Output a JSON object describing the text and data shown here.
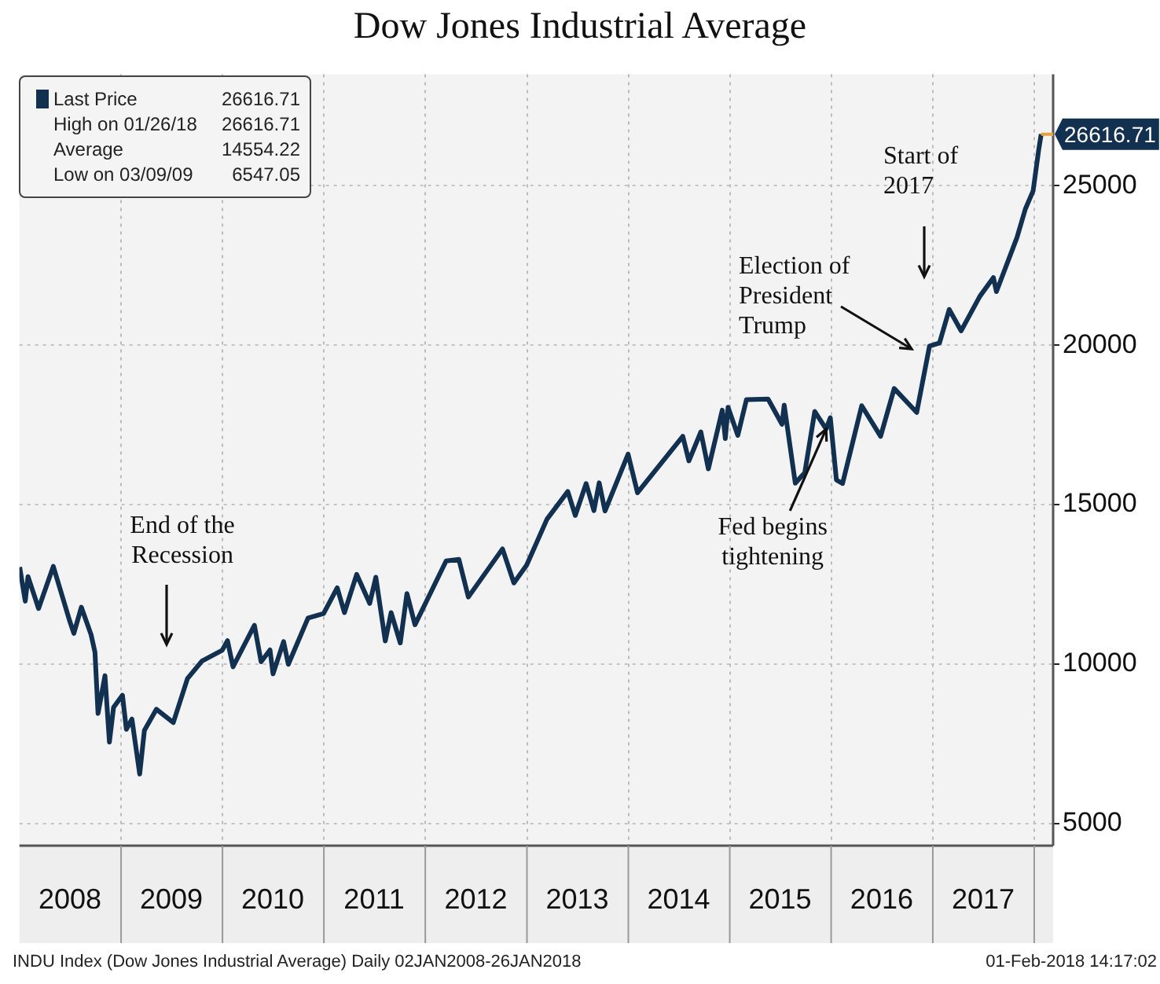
{
  "chart_data": {
    "type": "line",
    "title": "Dow Jones Industrial Average",
    "x": [
      "2008-01-02",
      "2008-01-22",
      "2008-02-01",
      "2008-03-10",
      "2008-05-02",
      "2008-06-30",
      "2008-07-15",
      "2008-08-11",
      "2008-09-15",
      "2008-09-29",
      "2008-10-10",
      "2008-11-04",
      "2008-11-20",
      "2008-12-05",
      "2009-01-06",
      "2009-01-20",
      "2009-02-09",
      "2009-03-09",
      "2009-03-26",
      "2009-05-08",
      "2009-07-08",
      "2009-08-28",
      "2009-10-19",
      "2009-12-31",
      "2010-01-19",
      "2010-02-08",
      "2010-04-26",
      "2010-05-20",
      "2010-06-21",
      "2010-07-02",
      "2010-08-09",
      "2010-08-26",
      "2010-11-05",
      "2010-12-31",
      "2011-02-18",
      "2011-03-16",
      "2011-04-29",
      "2011-06-15",
      "2011-07-07",
      "2011-08-10",
      "2011-08-31",
      "2011-10-03",
      "2011-10-27",
      "2011-11-25",
      "2012-03-16",
      "2012-05-01",
      "2012-06-04",
      "2012-10-05",
      "2012-11-15",
      "2012-12-31",
      "2013-03-14",
      "2013-05-28",
      "2013-06-24",
      "2013-08-02",
      "2013-08-30",
      "2013-09-18",
      "2013-10-09",
      "2013-12-31",
      "2014-02-03",
      "2014-07-16",
      "2014-08-07",
      "2014-09-19",
      "2014-10-16",
      "2014-12-05",
      "2014-12-16",
      "2014-12-26",
      "2015-01-30",
      "2015-03-02",
      "2015-05-19",
      "2015-07-08",
      "2015-07-16",
      "2015-08-25",
      "2015-09-28",
      "2015-11-03",
      "2015-12-14",
      "2015-12-29",
      "2016-01-20",
      "2016-02-11",
      "2016-04-20",
      "2016-06-27",
      "2016-08-15",
      "2016-11-04",
      "2016-12-20",
      "2017-01-25",
      "2017-03-01",
      "2017-04-13",
      "2017-06-19",
      "2017-08-07",
      "2017-08-18",
      "2017-10-31",
      "2017-11-30",
      "2017-12-28",
      "2018-01-17",
      "2018-01-26"
    ],
    "series": [
      {
        "name": "Last Price",
        "color": "#12304f",
        "values": [
          13040,
          11970,
          12740,
          11740,
          13060,
          11350,
          10960,
          11780,
          10920,
          10370,
          8450,
          9630,
          7550,
          8640,
          9020,
          7950,
          8270,
          6547.05,
          7920,
          8580,
          8160,
          9540,
          10090,
          10430,
          10730,
          9910,
          11210,
          10070,
          10440,
          9690,
          10700,
          9990,
          11440,
          11580,
          12390,
          11610,
          12810,
          11900,
          12720,
          10720,
          11610,
          10660,
          12210,
          11230,
          13230,
          13280,
          12100,
          13610,
          12540,
          13100,
          14540,
          15410,
          14660,
          15660,
          14810,
          15680,
          14800,
          16580,
          15370,
          17140,
          16370,
          17280,
          16120,
          17960,
          17070,
          18050,
          17170,
          18290,
          18310,
          17520,
          18120,
          15670,
          16000,
          17920,
          17370,
          17720,
          15770,
          15660,
          18100,
          17140,
          18640,
          17890,
          19970,
          20070,
          21120,
          20450,
          21530,
          22120,
          21680,
          23380,
          24270,
          24840,
          26120,
          26616.71
        ],
        "value_labels": [
          null,
          null,
          null,
          null,
          null,
          null,
          null,
          null,
          null,
          null,
          null,
          null,
          null,
          null,
          null,
          null,
          null,
          null,
          null,
          null,
          null,
          null,
          null,
          null,
          null,
          null,
          null,
          null,
          null,
          null,
          null,
          null,
          null,
          null,
          null,
          null,
          null,
          null,
          null,
          null,
          null,
          null,
          null,
          null,
          null,
          null,
          null,
          null,
          null,
          null,
          null,
          null,
          null,
          null,
          null,
          null,
          null,
          null,
          null,
          null,
          null,
          null,
          null,
          null,
          null,
          null,
          null,
          null,
          null,
          null,
          null,
          null,
          null,
          null,
          null,
          null,
          null,
          null,
          null,
          null,
          null,
          null,
          null,
          null,
          null,
          null,
          null,
          null,
          null,
          null,
          null,
          null,
          null,
          "26616.71"
        ]
      }
    ],
    "xlim": [
      "2008-01-01",
      "2018-03-10"
    ],
    "xticks": [
      {
        "value": "2008-07-01",
        "label": "2008"
      },
      {
        "value": "2009-01-01",
        "label": null
      },
      {
        "value": "2009-07-01",
        "label": "2009"
      },
      {
        "value": "2010-01-01",
        "label": null
      },
      {
        "value": "2010-07-01",
        "label": "2010"
      },
      {
        "value": "2011-01-01",
        "label": null
      },
      {
        "value": "2011-07-01",
        "label": "2011"
      },
      {
        "value": "2012-01-01",
        "label": null
      },
      {
        "value": "2012-07-01",
        "label": "2012"
      },
      {
        "value": "2013-01-01",
        "label": null
      },
      {
        "value": "2013-07-01",
        "label": "2013"
      },
      {
        "value": "2014-01-01",
        "label": null
      },
      {
        "value": "2014-07-01",
        "label": "2014"
      },
      {
        "value": "2015-01-01",
        "label": null
      },
      {
        "value": "2015-07-01",
        "label": "2015"
      },
      {
        "value": "2016-01-01",
        "label": null
      },
      {
        "value": "2016-07-01",
        "label": "2016"
      },
      {
        "value": "2017-01-01",
        "label": null
      },
      {
        "value": "2017-07-01",
        "label": "2017"
      },
      {
        "value": "2018-01-01",
        "label": null
      }
    ],
    "ylim": [
      4300,
      28500
    ],
    "yticks": [
      5000,
      10000,
      15000,
      20000,
      25000
    ],
    "grid": true,
    "legend": "top left",
    "annotations": [
      "High on 01/26/18 26616.71",
      "Average 14554.22",
      "Low on 03/09/09 6547.05",
      "INDU Index (Dow Jones Industrial Average) Daily 02JAN2008-26JAN2018",
      "01-Feb-2018 14:17:02",
      "End of the Recession",
      "Election of President Trump",
      "Start of 2017",
      {
        "text": "Fed begins tightening",
        "x": "2015-12-14",
        "y": 17370
      }
    ]
  }
}
